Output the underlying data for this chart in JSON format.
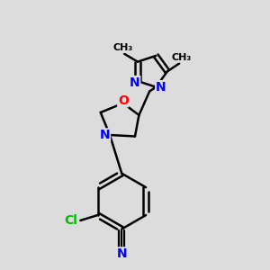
{
  "bg_color": "#dcdcdc",
  "bond_color": "#000000",
  "atom_colors": {
    "N": "#0000ff",
    "O": "#ff0000",
    "Cl": "#00bb00",
    "C": "#000000"
  },
  "bond_lw": 1.8,
  "font_size": 10
}
